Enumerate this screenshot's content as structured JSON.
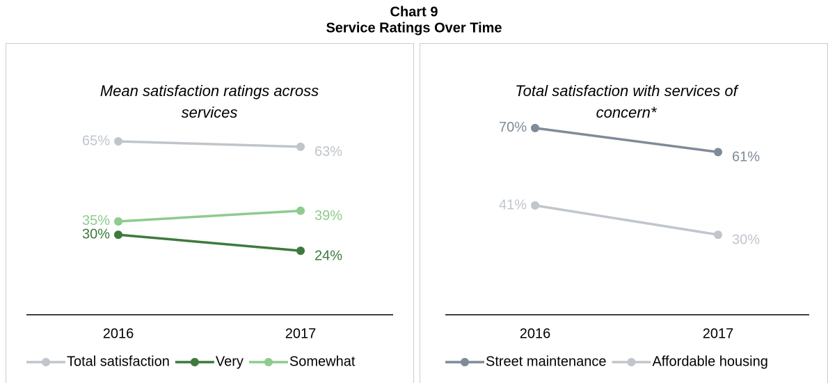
{
  "title": "Chart 9",
  "subtitle": "Service Ratings Over Time",
  "chart_data": [
    {
      "type": "line",
      "title": "Mean satisfaction ratings across services",
      "categories": [
        "2016",
        "2017"
      ],
      "ylim": [
        0,
        100
      ],
      "legend": "bottom",
      "series": [
        {
          "name": "Total satisfaction",
          "color": "#bfc5cb",
          "values": [
            65,
            63
          ],
          "value_labels": [
            "65%",
            "63%"
          ]
        },
        {
          "name": "Very",
          "color": "#3d7a3d",
          "values": [
            30,
            24
          ],
          "value_labels": [
            "30%",
            "24%"
          ]
        },
        {
          "name": "Somewhat",
          "color": "#8ecb8e",
          "values": [
            35,
            39
          ],
          "value_labels": [
            "35%",
            "39%"
          ]
        }
      ]
    },
    {
      "type": "line",
      "title": "Total satisfaction with services of concern*",
      "categories": [
        "2016",
        "2017"
      ],
      "ylim": [
        0,
        100
      ],
      "legend": "bottom",
      "series": [
        {
          "name": "Street maintenance",
          "color": "#7f8b98",
          "values": [
            70,
            61
          ],
          "value_labels": [
            "70%",
            "61%"
          ]
        },
        {
          "name": "Affordable housing",
          "color": "#c0c6cc",
          "values": [
            41,
            30
          ],
          "value_labels": [
            "41%",
            "30%"
          ]
        }
      ]
    }
  ]
}
